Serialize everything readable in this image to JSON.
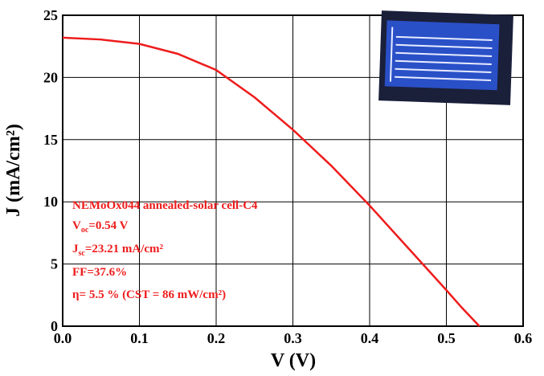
{
  "chart_data": {
    "type": "line",
    "xlabel": "V (V)",
    "ylabel": "J (mA/cm²)",
    "x": [
      0,
      0.05,
      0.1,
      0.15,
      0.2,
      0.25,
      0.3,
      0.35,
      0.4,
      0.45,
      0.5,
      0.52,
      0.543
    ],
    "series": [
      {
        "color": "#ee1c1c",
        "values": [
          23.2,
          23.05,
          22.7,
          21.9,
          20.6,
          18.4,
          15.8,
          12.9,
          9.7,
          6.3,
          2.9,
          1.5,
          0
        ]
      }
    ],
    "xlim": [
      0,
      0.6
    ],
    "ylim": [
      0,
      25
    ],
    "xticks": [
      {
        "value": 0,
        "label": "0.0"
      },
      0.1,
      0.2,
      0.3,
      0.4,
      0.5,
      0.6
    ],
    "yticks": [
      0,
      5,
      10,
      15,
      20,
      25
    ],
    "grid": true,
    "annotations": [
      [
        "NEMoOx044 annealed-solar cell-C4"
      ],
      [
        "V",
        "oc",
        "=0.54 V"
      ],
      [
        "J",
        "sc",
        "=23.21 mA/cm²"
      ],
      [
        "FF=37.6%"
      ],
      [
        "η= 5.5 % (CST = 86 mW/cm²)"
      ]
    ]
  }
}
